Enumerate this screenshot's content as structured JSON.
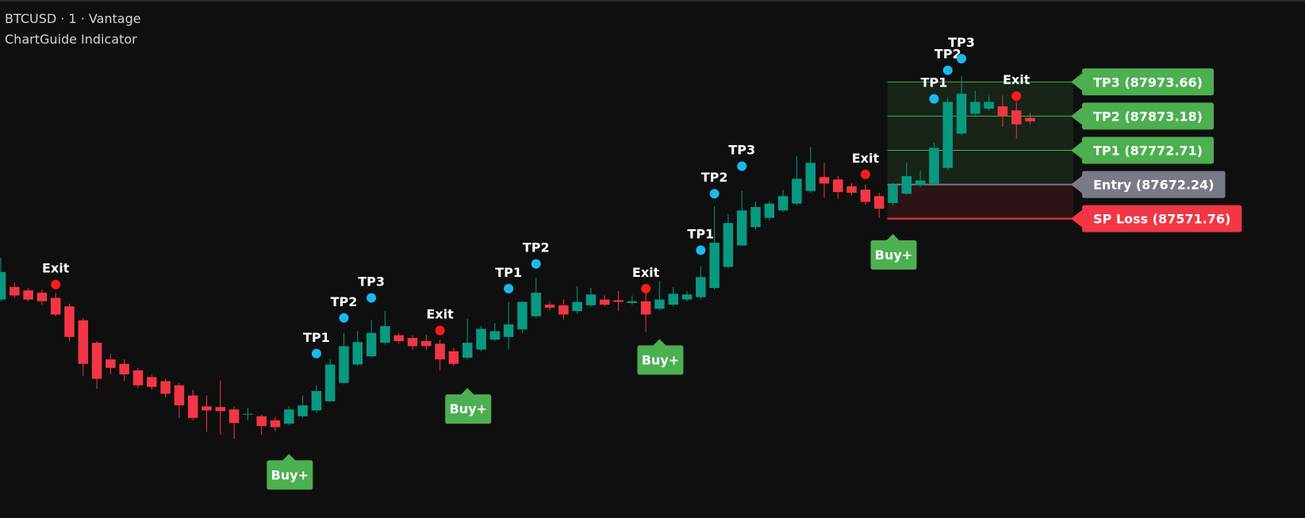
{
  "chart_data": {
    "type": "candlestick",
    "title": "BTCUSD · 1 · Vantage",
    "subtitle": "ChartGuide Indicator",
    "up_color": "#089981",
    "down_color": "#f23645",
    "open": [
      87334,
      87371,
      87361,
      87354,
      87339,
      87314,
      87273,
      87207,
      87158,
      87145,
      87126,
      87106,
      87094,
      87082,
      87052,
      87020,
      87018,
      87011,
      86996,
      86991,
      86979,
      86969,
      86991,
      87008,
      87035,
      87089,
      87143,
      87167,
      87207,
      87229,
      87221,
      87212,
      87204,
      87182,
      87163,
      87187,
      87216,
      87224,
      87246,
      87285,
      87319,
      87317,
      87300,
      87317,
      87334,
      87332,
      87324,
      87329,
      87307,
      87319,
      87334,
      87341,
      87368,
      87430,
      87493,
      87547,
      87574,
      87596,
      87616,
      87653,
      87694,
      87687,
      87667,
      87657,
      87638,
      87618,
      87645,
      87670,
      87675,
      87721,
      87822,
      87880,
      87895,
      87902,
      87890,
      87868
    ],
    "high": [
      87457,
      87383,
      87368,
      87363,
      87354,
      87322,
      87280,
      87212,
      87175,
      87158,
      87133,
      87114,
      87101,
      87089,
      87069,
      87052,
      87096,
      87020,
      87016,
      86996,
      86989,
      87020,
      87052,
      87082,
      87158,
      87236,
      87241,
      87273,
      87300,
      87236,
      87229,
      87231,
      87216,
      87192,
      87278,
      87256,
      87265,
      87327,
      87329,
      87398,
      87329,
      87334,
      87373,
      87368,
      87346,
      87359,
      87346,
      87354,
      87388,
      87371,
      87359,
      87432,
      87608,
      87584,
      87653,
      87621,
      87623,
      87657,
      87755,
      87782,
      87736,
      87697,
      87677,
      87672,
      87648,
      87677,
      87736,
      87714,
      87795,
      87927,
      87991,
      87947,
      87934,
      87934,
      87917,
      87883
    ],
    "low": [
      87329,
      87339,
      87329,
      87319,
      87285,
      87212,
      87109,
      87072,
      87114,
      87094,
      87074,
      87069,
      87047,
      86986,
      86979,
      86947,
      86937,
      86925,
      86979,
      86937,
      86947,
      86964,
      86986,
      87001,
      87033,
      87084,
      87138,
      87163,
      87202,
      87204,
      87187,
      87185,
      87126,
      87138,
      87158,
      87182,
      87212,
      87187,
      87236,
      87280,
      87302,
      87275,
      87292,
      87312,
      87314,
      87300,
      87319,
      87238,
      87302,
      87314,
      87329,
      87334,
      87363,
      87425,
      87491,
      87540,
      87567,
      87591,
      87611,
      87648,
      87633,
      87630,
      87640,
      87613,
      87574,
      87611,
      87643,
      87665,
      87672,
      87714,
      87817,
      87875,
      87890,
      87841,
      87807,
      87849
    ],
    "close": [
      87415,
      87346,
      87334,
      87329,
      87290,
      87224,
      87145,
      87101,
      87133,
      87114,
      87082,
      87077,
      87057,
      87023,
      86986,
      87008,
      87006,
      86971,
      86998,
      86962,
      86959,
      87011,
      87023,
      87065,
      87143,
      87197,
      87209,
      87236,
      87256,
      87212,
      87197,
      87197,
      87158,
      87145,
      87207,
      87248,
      87241,
      87261,
      87327,
      87354,
      87310,
      87290,
      87327,
      87349,
      87319,
      87327,
      87329,
      87290,
      87334,
      87351,
      87349,
      87400,
      87501,
      87559,
      87596,
      87606,
      87616,
      87638,
      87689,
      87736,
      87675,
      87650,
      87648,
      87621,
      87601,
      87672,
      87697,
      87684,
      87780,
      87915,
      87939,
      87915,
      87915,
      87873,
      87849,
      87858
    ],
    "markers": [
      {
        "label": "Exit",
        "x": 4,
        "y": 87378,
        "color": "#ff1a1a"
      },
      {
        "label": "TP1",
        "x": 23,
        "y": 87175,
        "color": "#1ab8f0"
      },
      {
        "label": "TP2",
        "x": 25,
        "y": 87280,
        "color": "#1ab8f0"
      },
      {
        "label": "TP3",
        "x": 27,
        "y": 87339,
        "color": "#1ab8f0"
      },
      {
        "label": "Exit",
        "x": 32,
        "y": 87243,
        "color": "#ff1a1a"
      },
      {
        "label": "TP1",
        "x": 37,
        "y": 87366,
        "color": "#1ab8f0"
      },
      {
        "label": "TP2",
        "x": 39,
        "y": 87439,
        "color": "#1ab8f0"
      },
      {
        "label": "Exit",
        "x": 47,
        "y": 87366,
        "color": "#ff1a1a"
      },
      {
        "label": "TP1",
        "x": 51,
        "y": 87479,
        "color": "#1ab8f0"
      },
      {
        "label": "TP2",
        "x": 52,
        "y": 87645,
        "color": "#1ab8f0"
      },
      {
        "label": "TP3",
        "x": 54,
        "y": 87726,
        "color": "#1ab8f0"
      },
      {
        "label": "Exit",
        "x": 63,
        "y": 87702,
        "color": "#ff1a1a"
      },
      {
        "label": "TP1",
        "x": 68,
        "y": 87924,
        "color": "#1ab8f0"
      },
      {
        "label": "TP2",
        "x": 69,
        "y": 88008,
        "color": "#1ab8f0"
      },
      {
        "label": "TP3",
        "x": 70,
        "y": 88042,
        "color": "#1ab8f0"
      },
      {
        "label": "Exit",
        "x": 74,
        "y": 87932,
        "color": "#ff1a1a"
      }
    ],
    "signals": [
      {
        "label": "Buy+",
        "x": 21,
        "color": "#4caf50"
      },
      {
        "label": "Buy+",
        "x": 34,
        "color": "#4caf50"
      },
      {
        "label": "Buy+",
        "x": 48,
        "color": "#4caf50"
      },
      {
        "label": "Buy+",
        "x": 65,
        "color": "#4caf50"
      }
    ],
    "levels_start": 65,
    "levels": [
      {
        "label": "TP3 (87973.66)",
        "value": 87973.66,
        "color": "#4caf50"
      },
      {
        "label": "TP2 (87873.18)",
        "value": 87873.18,
        "color": "#4caf50"
      },
      {
        "label": "TP1 (87772.71)",
        "value": 87772.71,
        "color": "#4caf50"
      },
      {
        "label": "Entry (87672.24)",
        "value": 87672.24,
        "color": "#787b86"
      },
      {
        "label": "SP Loss (87571.76)",
        "value": 87571.76,
        "color": "#f23645"
      }
    ]
  }
}
